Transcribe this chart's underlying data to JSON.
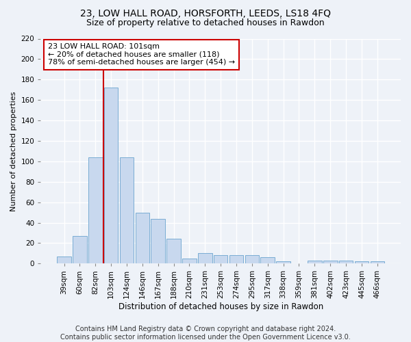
{
  "title1": "23, LOW HALL ROAD, HORSFORTH, LEEDS, LS18 4FQ",
  "title2": "Size of property relative to detached houses in Rawdon",
  "xlabel": "Distribution of detached houses by size in Rawdon",
  "ylabel": "Number of detached properties",
  "bar_color": "#c8d8ee",
  "bar_edge_color": "#7aadd4",
  "categories": [
    "39sqm",
    "60sqm",
    "82sqm",
    "103sqm",
    "124sqm",
    "146sqm",
    "167sqm",
    "188sqm",
    "210sqm",
    "231sqm",
    "253sqm",
    "274sqm",
    "295sqm",
    "317sqm",
    "338sqm",
    "359sqm",
    "381sqm",
    "402sqm",
    "423sqm",
    "445sqm",
    "466sqm"
  ],
  "values": [
    7,
    27,
    104,
    172,
    104,
    50,
    44,
    24,
    5,
    10,
    8,
    8,
    8,
    6,
    2,
    0,
    3,
    3,
    3,
    2,
    2
  ],
  "vline_color": "#cc0000",
  "annotation_text": "23 LOW HALL ROAD: 101sqm\n← 20% of detached houses are smaller (118)\n78% of semi-detached houses are larger (454) →",
  "annotation_box_color": "#ffffff",
  "annotation_box_edge": "#cc0000",
  "ylim": [
    0,
    220
  ],
  "yticks": [
    0,
    20,
    40,
    60,
    80,
    100,
    120,
    140,
    160,
    180,
    200,
    220
  ],
  "footer1": "Contains HM Land Registry data © Crown copyright and database right 2024.",
  "footer2": "Contains public sector information licensed under the Open Government Licence v3.0.",
  "bg_color": "#eef2f8",
  "grid_color": "#ffffff",
  "title1_fontsize": 10,
  "title2_fontsize": 9,
  "xlabel_fontsize": 8.5,
  "ylabel_fontsize": 8,
  "tick_fontsize": 7.5,
  "annotation_fontsize": 8,
  "footer_fontsize": 7
}
